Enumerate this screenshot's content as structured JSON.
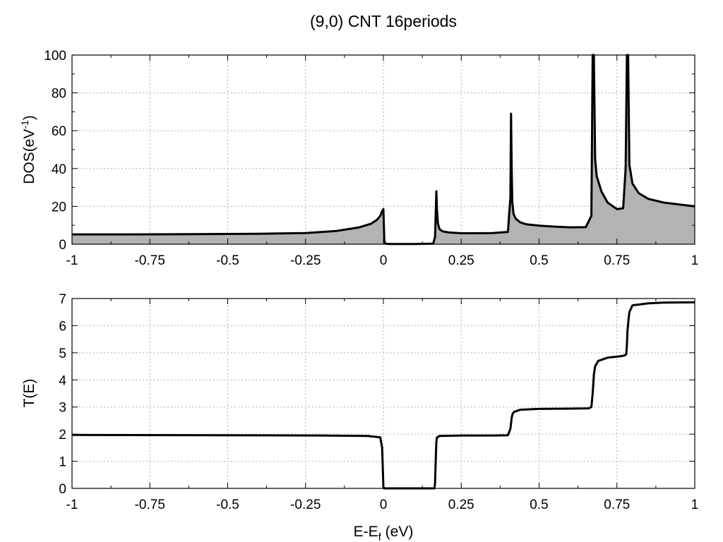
{
  "figure": {
    "title": "(9,0) CNT 16periods"
  },
  "chart_data": [
    {
      "type": "area",
      "ylabel_main": "DOS(eV",
      "ylabel_sup": "-1",
      "ylabel_tail": ")",
      "xlim": [
        -1,
        1
      ],
      "ylim": [
        0,
        100
      ],
      "xticks": [
        "-1",
        "-0.75",
        "-0.5",
        "-0.25",
        "0",
        "0.25",
        "0.5",
        "0.75",
        "1"
      ],
      "yticks": [
        "0",
        "20",
        "40",
        "60",
        "80",
        "100"
      ],
      "grid": true,
      "fill_color": "#b3b3b3",
      "line_color": "#000000",
      "x": [
        -1.0,
        -0.8,
        -0.6,
        -0.4,
        -0.25,
        -0.15,
        -0.08,
        -0.04,
        -0.02,
        -0.01,
        -0.004,
        0.0,
        0.003,
        0.006,
        0.01,
        0.02,
        0.1,
        0.16,
        0.166,
        0.168,
        0.17,
        0.172,
        0.175,
        0.18,
        0.19,
        0.21,
        0.25,
        0.3,
        0.35,
        0.4,
        0.408,
        0.41,
        0.412,
        0.414,
        0.418,
        0.425,
        0.44,
        0.46,
        0.5,
        0.55,
        0.6,
        0.65,
        0.668,
        0.672,
        0.674,
        0.676,
        0.68,
        0.685,
        0.7,
        0.72,
        0.75,
        0.77,
        0.778,
        0.782,
        0.784,
        0.786,
        0.79,
        0.8,
        0.82,
        0.85,
        0.9,
        0.95,
        1.0
      ],
      "y": [
        5.2,
        5.2,
        5.3,
        5.5,
        5.9,
        7.0,
        8.8,
        10.8,
        13.0,
        15.0,
        17.5,
        18.5,
        2.0,
        0.4,
        0.2,
        0.1,
        0.1,
        0.3,
        4.0,
        16.0,
        28.0,
        18.0,
        11.0,
        8.0,
        6.8,
        6.2,
        5.8,
        5.8,
        5.9,
        6.5,
        25.0,
        69.0,
        40.0,
        22.0,
        16.0,
        13.5,
        11.5,
        10.5,
        9.8,
        9.3,
        8.9,
        9.0,
        15.0,
        100.0,
        100.0,
        100.0,
        45.0,
        36.0,
        28.0,
        22.0,
        18.5,
        19.0,
        40.0,
        100.0,
        100.0,
        100.0,
        42.0,
        32.0,
        27.0,
        24.0,
        22.0,
        21.0,
        20.0
      ]
    },
    {
      "type": "line",
      "ylabel": "T(E)",
      "xlabel_main": "E-E",
      "xlabel_sub": "f",
      "xlabel_tail": " (eV)",
      "xlim": [
        -1,
        1
      ],
      "ylim": [
        0,
        7
      ],
      "xticks": [
        "-1",
        "-0.75",
        "-0.5",
        "-0.25",
        "0",
        "0.25",
        "0.5",
        "0.75",
        "1"
      ],
      "yticks": [
        "0",
        "1",
        "2",
        "3",
        "4",
        "5",
        "6",
        "7"
      ],
      "grid": true,
      "line_color": "#000000",
      "x": [
        -1.0,
        -0.5,
        -0.2,
        -0.05,
        -0.01,
        -0.004,
        -0.002,
        0.0,
        0.002,
        0.004,
        0.01,
        0.1,
        0.164,
        0.166,
        0.168,
        0.17,
        0.172,
        0.18,
        0.25,
        0.35,
        0.4,
        0.408,
        0.41,
        0.412,
        0.415,
        0.42,
        0.44,
        0.5,
        0.6,
        0.66,
        0.668,
        0.672,
        0.674,
        0.676,
        0.68,
        0.69,
        0.72,
        0.76,
        0.775,
        0.78,
        0.782,
        0.784,
        0.787,
        0.79,
        0.8,
        0.85,
        0.9,
        1.0
      ],
      "y": [
        1.97,
        1.96,
        1.95,
        1.93,
        1.88,
        1.5,
        0.8,
        0.05,
        0.0,
        0.0,
        0.0,
        0.0,
        0.0,
        0.2,
        1.0,
        1.7,
        1.88,
        1.93,
        1.95,
        1.95,
        1.96,
        2.2,
        2.4,
        2.6,
        2.75,
        2.82,
        2.9,
        2.93,
        2.94,
        2.95,
        3.0,
        3.5,
        3.8,
        4.2,
        4.5,
        4.7,
        4.82,
        4.87,
        4.9,
        4.95,
        5.3,
        5.8,
        6.2,
        6.5,
        6.75,
        6.82,
        6.85,
        6.86
      ]
    }
  ]
}
